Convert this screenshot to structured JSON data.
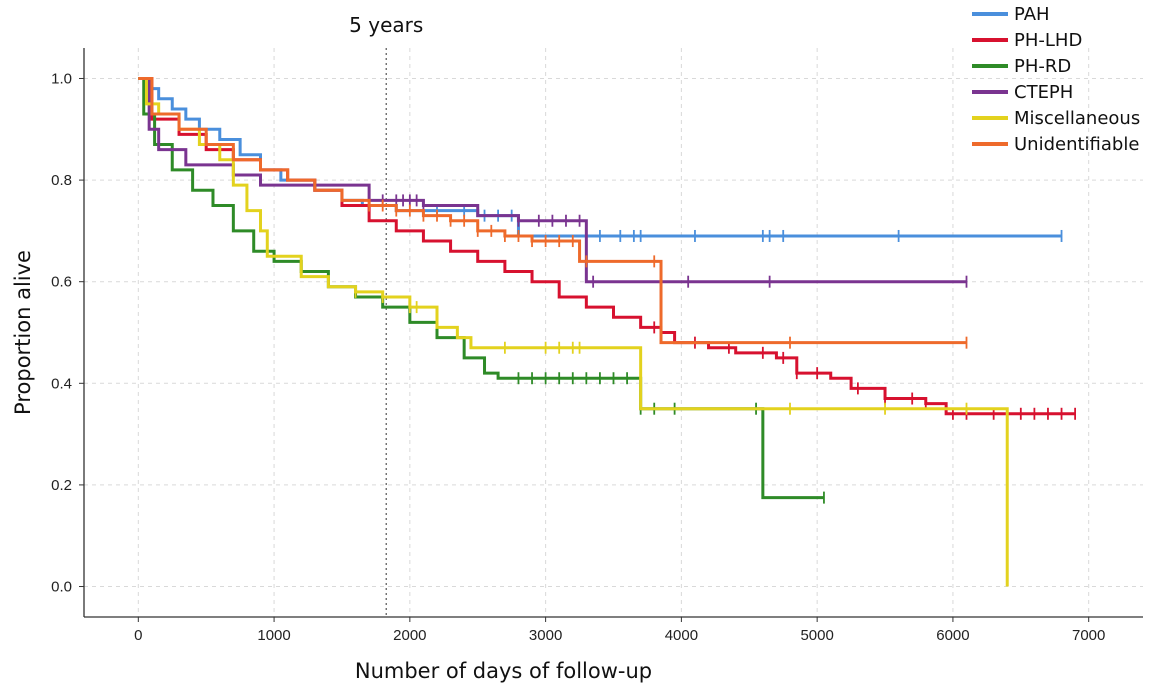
{
  "chart_data": {
    "type": "line",
    "subtype": "kaplan-meier step curves with censor marks",
    "xlabel": "Number of days of follow-up",
    "ylabel": "Proportion alive",
    "xlim": [
      -400,
      7400
    ],
    "ylim": [
      -0.06,
      1.06
    ],
    "xticks": [
      0,
      1000,
      2000,
      3000,
      4000,
      5000,
      6000,
      7000
    ],
    "yticks": [
      0.0,
      0.2,
      0.4,
      0.6,
      0.8,
      1.0
    ],
    "ytick_labels": [
      "0.0",
      "0.2",
      "0.4",
      "0.6",
      "0.8",
      "1.0"
    ],
    "grid": true,
    "legend_position": "top-right",
    "annotation": {
      "text": "5 years",
      "x": 1826,
      "style": "dotted vertical line"
    },
    "series": [
      {
        "name": "PAH",
        "color": "#4a8fdc",
        "steps": [
          [
            0,
            1.0
          ],
          [
            80,
            0.98
          ],
          [
            150,
            0.96
          ],
          [
            250,
            0.94
          ],
          [
            350,
            0.92
          ],
          [
            450,
            0.9
          ],
          [
            600,
            0.88
          ],
          [
            750,
            0.85
          ],
          [
            900,
            0.82
          ],
          [
            1050,
            0.8
          ],
          [
            1300,
            0.78
          ],
          [
            1500,
            0.76
          ],
          [
            1650,
            0.75
          ],
          [
            1900,
            0.74
          ],
          [
            2500,
            0.73
          ],
          [
            2800,
            0.69
          ],
          [
            6800,
            0.69
          ]
        ],
        "censor_x": [
          2200,
          2400,
          2550,
          2650,
          2750,
          3400,
          3550,
          3650,
          3700,
          4100,
          4600,
          4650,
          4750,
          5600,
          6800
        ]
      },
      {
        "name": "PH-LHD",
        "color": "#d7112f",
        "steps": [
          [
            0,
            1.0
          ],
          [
            100,
            0.92
          ],
          [
            300,
            0.89
          ],
          [
            500,
            0.86
          ],
          [
            700,
            0.84
          ],
          [
            900,
            0.82
          ],
          [
            1100,
            0.8
          ],
          [
            1300,
            0.78
          ],
          [
            1500,
            0.75
          ],
          [
            1700,
            0.72
          ],
          [
            1900,
            0.7
          ],
          [
            2100,
            0.68
          ],
          [
            2300,
            0.66
          ],
          [
            2500,
            0.64
          ],
          [
            2700,
            0.62
          ],
          [
            2900,
            0.6
          ],
          [
            3100,
            0.57
          ],
          [
            3300,
            0.55
          ],
          [
            3500,
            0.53
          ],
          [
            3700,
            0.51
          ],
          [
            3850,
            0.5
          ],
          [
            3950,
            0.48
          ],
          [
            4200,
            0.47
          ],
          [
            4400,
            0.46
          ],
          [
            4700,
            0.45
          ],
          [
            4850,
            0.42
          ],
          [
            5100,
            0.41
          ],
          [
            5250,
            0.39
          ],
          [
            5500,
            0.37
          ],
          [
            5800,
            0.36
          ],
          [
            5950,
            0.34
          ],
          [
            6900,
            0.34
          ]
        ],
        "censor_x": [
          3800,
          4100,
          4350,
          4600,
          4750,
          4850,
          5000,
          5300,
          5500,
          5700,
          5800,
          6000,
          6100,
          6300,
          6500,
          6600,
          6700,
          6800,
          6900
        ]
      },
      {
        "name": "PH-RD",
        "color": "#2e8b27",
        "steps": [
          [
            0,
            1.0
          ],
          [
            40,
            0.93
          ],
          [
            120,
            0.87
          ],
          [
            250,
            0.82
          ],
          [
            400,
            0.78
          ],
          [
            550,
            0.75
          ],
          [
            700,
            0.7
          ],
          [
            850,
            0.66
          ],
          [
            1000,
            0.64
          ],
          [
            1200,
            0.62
          ],
          [
            1400,
            0.59
          ],
          [
            1600,
            0.57
          ],
          [
            1800,
            0.55
          ],
          [
            2000,
            0.52
          ],
          [
            2200,
            0.49
          ],
          [
            2400,
            0.45
          ],
          [
            2550,
            0.42
          ],
          [
            2650,
            0.41
          ],
          [
            3700,
            0.35
          ],
          [
            4600,
            0.35
          ],
          [
            4600,
            0.175
          ],
          [
            5050,
            0.175
          ]
        ],
        "censor_x": [
          2800,
          2900,
          3000,
          3100,
          3200,
          3300,
          3400,
          3500,
          3600,
          3700,
          3800,
          3950,
          4550,
          5050
        ]
      },
      {
        "name": "CTEPH",
        "color": "#7a3490",
        "steps": [
          [
            0,
            1.0
          ],
          [
            80,
            0.9
          ],
          [
            150,
            0.86
          ],
          [
            350,
            0.83
          ],
          [
            700,
            0.81
          ],
          [
            900,
            0.79
          ],
          [
            1400,
            0.79
          ],
          [
            1700,
            0.76
          ],
          [
            2100,
            0.75
          ],
          [
            2500,
            0.73
          ],
          [
            2800,
            0.72
          ],
          [
            3300,
            0.6
          ],
          [
            6100,
            0.6
          ]
        ],
        "censor_x": [
          1800,
          1900,
          1950,
          2000,
          2050,
          2100,
          2800,
          2950,
          3050,
          3150,
          3250,
          3350,
          4050,
          4650,
          6100
        ]
      },
      {
        "name": "Miscellaneous",
        "color": "#e3d21e",
        "steps": [
          [
            0,
            1.0
          ],
          [
            60,
            0.95
          ],
          [
            150,
            0.93
          ],
          [
            300,
            0.9
          ],
          [
            450,
            0.87
          ],
          [
            600,
            0.84
          ],
          [
            700,
            0.79
          ],
          [
            800,
            0.74
          ],
          [
            900,
            0.7
          ],
          [
            950,
            0.65
          ],
          [
            1200,
            0.61
          ],
          [
            1400,
            0.59
          ],
          [
            1600,
            0.58
          ],
          [
            1800,
            0.57
          ],
          [
            2000,
            0.55
          ],
          [
            2200,
            0.51
          ],
          [
            2350,
            0.49
          ],
          [
            2450,
            0.47
          ],
          [
            3700,
            0.35
          ],
          [
            6400,
            0.35
          ],
          [
            6400,
            0.0
          ]
        ],
        "censor_x": [
          1600,
          1800,
          2000,
          2050,
          2700,
          3000,
          3100,
          3200,
          3250,
          4800,
          5500,
          6100
        ]
      },
      {
        "name": "Unidentifiable",
        "color": "#ee6a2b",
        "steps": [
          [
            0,
            1.0
          ],
          [
            100,
            0.93
          ],
          [
            300,
            0.9
          ],
          [
            500,
            0.87
          ],
          [
            700,
            0.84
          ],
          [
            900,
            0.82
          ],
          [
            1100,
            0.8
          ],
          [
            1300,
            0.78
          ],
          [
            1500,
            0.76
          ],
          [
            1700,
            0.75
          ],
          [
            1900,
            0.74
          ],
          [
            2100,
            0.73
          ],
          [
            2300,
            0.72
          ],
          [
            2500,
            0.7
          ],
          [
            2700,
            0.69
          ],
          [
            2900,
            0.68
          ],
          [
            3250,
            0.64
          ],
          [
            3850,
            0.48
          ],
          [
            6100,
            0.48
          ]
        ],
        "censor_x": [
          1700,
          1800,
          1900,
          2000,
          2100,
          2200,
          2300,
          2400,
          2500,
          2600,
          2700,
          2800,
          2900,
          3000,
          3100,
          3200,
          3300,
          3800,
          4800,
          6100
        ]
      }
    ]
  }
}
